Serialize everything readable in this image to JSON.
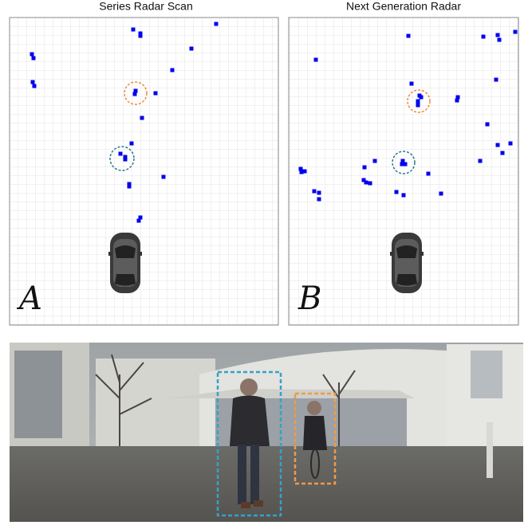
{
  "panels": [
    {
      "title": "Series Radar Scan",
      "label": "A"
    },
    {
      "title": "Next Generation Radar",
      "label": "B"
    }
  ]
}
